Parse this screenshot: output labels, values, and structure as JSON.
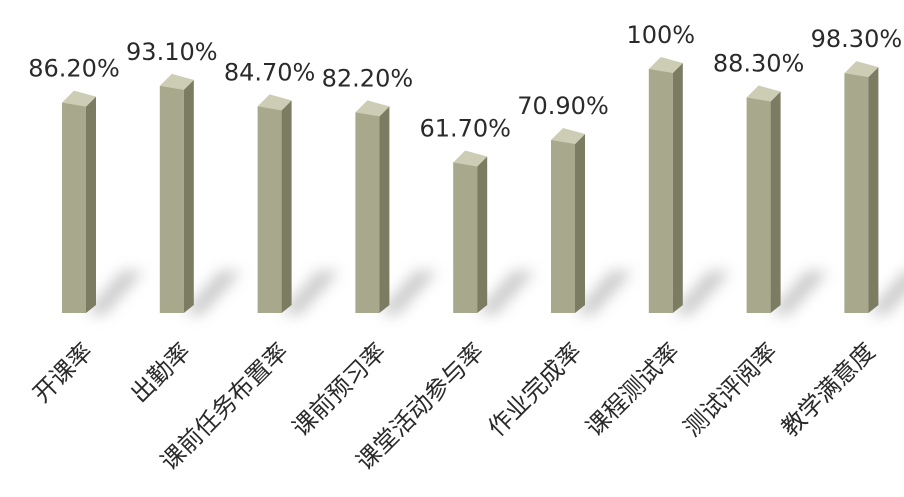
{
  "chart_data": {
    "type": "bar",
    "categories": [
      "开课率",
      "出勤率",
      "课前任务布置率",
      "课前预习率",
      "课堂活动参与率",
      "作业完成率",
      "课程测试率",
      "测试评阅率",
      "教学满意度"
    ],
    "values": [
      86.2,
      93.1,
      84.7,
      82.2,
      61.7,
      70.9,
      100,
      88.3,
      98.3
    ],
    "value_labels": [
      "86.20%",
      "93.10%",
      "84.70%",
      "82.20%",
      "61.70%",
      "70.90%",
      "100%",
      "88.30%",
      "98.30%"
    ],
    "ylim": [
      0,
      100
    ],
    "grid": false,
    "colors": {
      "bar_front": "#a8a88c",
      "bar_side": "#7c7c62",
      "bar_top": "#cdcdb5",
      "shadow": "#b8b8b8"
    }
  }
}
